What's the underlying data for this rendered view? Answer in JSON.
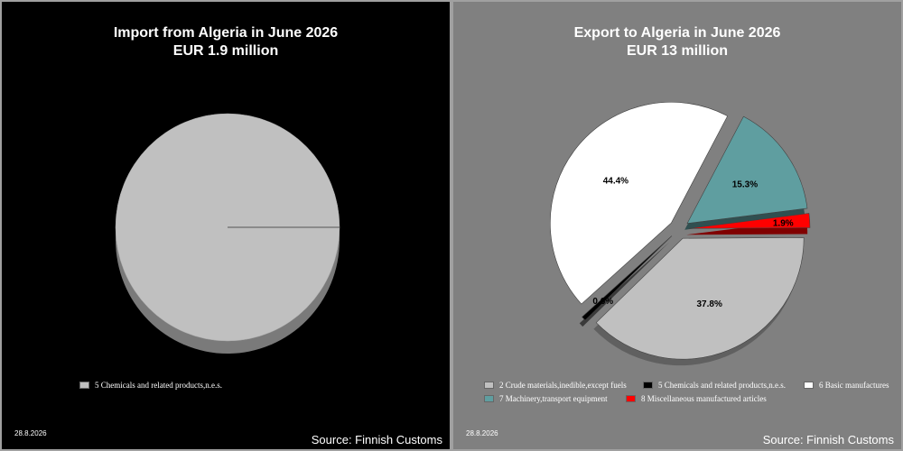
{
  "chart_data": [
    {
      "type": "pie",
      "title": "Import from Algeria in June 2026",
      "subtitle": "EUR   1.9 million",
      "slices": [
        {
          "label": "5 Chemicals and related products,n.e.s.",
          "value": 100.0,
          "color": "#c0c0c0"
        }
      ],
      "date": "28.8.2026",
      "source": "Source: Finnish Customs",
      "background": "#000000",
      "legend_position": "bottom"
    },
    {
      "type": "pie",
      "title": "Export to Algeria in June 2026",
      "subtitle": "EUR    13 million",
      "slices": [
        {
          "label": "2 Crude materials,inedible,except fuels",
          "value": 37.8,
          "display": "37.8%",
          "color": "#c0c0c0"
        },
        {
          "label": "5 Chemicals and related products,n.e.s.",
          "value": 0.6,
          "display": "0.6%",
          "color": "#000000"
        },
        {
          "label": "6 Basic manufactures",
          "value": 44.4,
          "display": "44.4%",
          "color": "#ffffff"
        },
        {
          "label": "7 Machinery,transport equipment",
          "value": 15.3,
          "display": "15.3%",
          "color": "#5f9ea0"
        },
        {
          "label": "8 Miscellaneous manufactured articles",
          "value": 1.9,
          "display": "1.9%",
          "color": "#ff0000"
        }
      ],
      "date": "28.8.2026",
      "source": "Source: Finnish Customs",
      "background": "#808080",
      "legend_position": "bottom"
    }
  ]
}
